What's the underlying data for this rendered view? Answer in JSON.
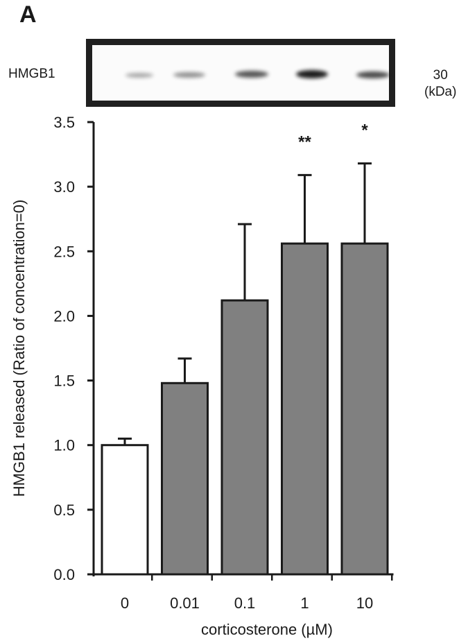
{
  "panel": {
    "label": "A"
  },
  "blot": {
    "protein_label": "HMGB1",
    "mw_value": "30",
    "mw_unit": "(kDa)",
    "bands": [
      {
        "lane": "0",
        "intensity": 0.35
      },
      {
        "lane": "0.01",
        "intensity": 0.45
      },
      {
        "lane": "0.1",
        "intensity": 0.65
      },
      {
        "lane": "1",
        "intensity": 0.95
      },
      {
        "lane": "10",
        "intensity": 0.75
      }
    ]
  },
  "chart_data": {
    "type": "bar",
    "title": "",
    "xlabel": "corticosterone (µM)",
    "ylabel": "HMGB1 released (Ratio of concentration=0)",
    "categories": [
      "0",
      "0.01",
      "0.1",
      "1",
      "10"
    ],
    "values": [
      1.0,
      1.48,
      2.12,
      2.56,
      2.56
    ],
    "error_upper": [
      0.05,
      0.19,
      0.59,
      0.53,
      0.62
    ],
    "bar_colors": [
      "#ffffff",
      "#808080",
      "#808080",
      "#808080",
      "#808080"
    ],
    "significance": [
      "",
      "",
      "",
      "**",
      "*"
    ],
    "ylim": [
      0,
      3.5
    ],
    "yticks": [
      "0.0",
      "0.5",
      "1.0",
      "1.5",
      "2.0",
      "2.5",
      "3.0",
      "3.5"
    ],
    "grid": false,
    "legend": null
  }
}
